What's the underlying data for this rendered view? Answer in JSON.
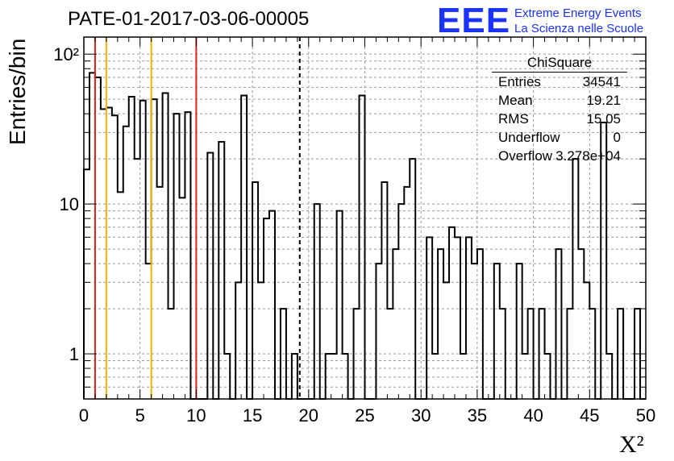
{
  "title": "PATE-01-2017-03-06-00005",
  "logo": {
    "mark": "EEE",
    "line1": "Extreme Energy Events",
    "line2": "La Scienza nelle Scuole",
    "color": "#1a33ff"
  },
  "stats_box": {
    "title": "ChiSquare",
    "rows": [
      {
        "label": "Entries",
        "value": "34541"
      },
      {
        "label": "Mean",
        "value": "19.21"
      },
      {
        "label": "RMS",
        "value": "15.05"
      },
      {
        "label": "Underflow",
        "value": "0"
      },
      {
        "label": "Overflow",
        "value": "3.278e+04"
      }
    ]
  },
  "chart_data": {
    "type": "histogram",
    "xlabel": "X²",
    "ylabel": "Entries/bin",
    "xlim": [
      0,
      50
    ],
    "ylim": [
      0.5,
      130
    ],
    "log_y": true,
    "grid": true,
    "bin_width": 0.5,
    "x_ticks": [
      "0",
      "5",
      "10",
      "15",
      "20",
      "25",
      "30",
      "35",
      "40",
      "45",
      "50"
    ],
    "y_ticks": [
      {
        "value": 1,
        "label": "1"
      },
      {
        "value": 10,
        "label": "10"
      },
      {
        "value": 100,
        "label": "10²"
      }
    ],
    "values": [
      17,
      75,
      70,
      43,
      44,
      39,
      12,
      33,
      52,
      20,
      49,
      4,
      50,
      13,
      55,
      2,
      40,
      11,
      41,
      0.5,
      0.5,
      0.5,
      22,
      0,
      26,
      1,
      0,
      3,
      53,
      0,
      14,
      3,
      8,
      9,
      0,
      2,
      0,
      1,
      0.5,
      0,
      0.5,
      10,
      0,
      1,
      1,
      9,
      1,
      0,
      2,
      53,
      0,
      0.5,
      4,
      14,
      2,
      5,
      10,
      13,
      20,
      0.5,
      0,
      6,
      1,
      5,
      3,
      7,
      6,
      1,
      6,
      4,
      5,
      0,
      0.5,
      4,
      2,
      0.5,
      0,
      4,
      1,
      2,
      0,
      2,
      1,
      0,
      5,
      0,
      2,
      20,
      5,
      3,
      2,
      0,
      35,
      1,
      0.5,
      2,
      0,
      0.5,
      2,
      0.5
    ],
    "lines": [
      {
        "x": 1,
        "color": "#e02020",
        "style": "solid"
      },
      {
        "x": 2,
        "color": "#f0b400",
        "style": "solid"
      },
      {
        "x": 6,
        "color": "#f0b400",
        "style": "solid"
      },
      {
        "x": 10,
        "color": "#e02020",
        "style": "solid"
      },
      {
        "x": 19.21,
        "color": "#000000",
        "style": "dashed"
      }
    ]
  }
}
